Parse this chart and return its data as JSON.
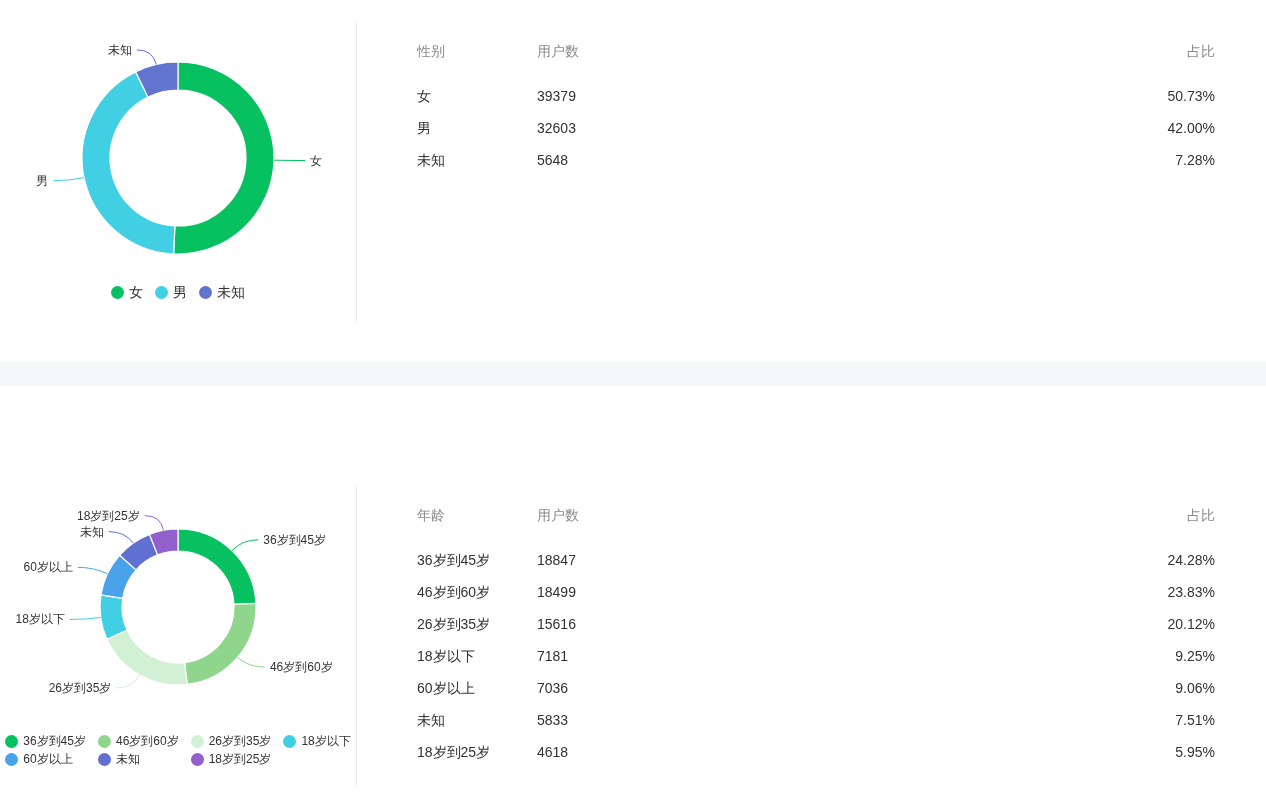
{
  "chart_data": [
    {
      "type": "donut",
      "categories": [
        "女",
        "男",
        "未知"
      ],
      "values": [
        50.73,
        42.0,
        7.28
      ],
      "colors": [
        "#07c160",
        "#40cfe3",
        "#6074d0"
      ],
      "legend": "bottom"
    },
    {
      "type": "other",
      "xlabel": "性别",
      "categories": [
        "女",
        "男",
        "未知"
      ],
      "data_labels": true,
      "series": [
        {
          "name": "用户数",
          "values": [
            39379,
            32603,
            5648
          ]
        },
        {
          "name": "占比",
          "values": [
            50.73,
            42.0,
            7.28
          ],
          "value_labels": [
            "50.73%",
            "42.00%",
            "7.28%"
          ]
        }
      ]
    },
    {
      "type": "donut",
      "categories": [
        "36岁到45岁",
        "46岁到60岁",
        "26岁到35岁",
        "18岁以下",
        "60岁以上",
        "未知",
        "18岁到25岁"
      ],
      "values": [
        24.28,
        23.83,
        20.12,
        9.25,
        9.06,
        7.51,
        5.95
      ],
      "colors": [
        "#07c160",
        "#8fd68c",
        "#d2f0d4",
        "#40cfe3",
        "#4aa3ea",
        "#5f70d0",
        "#9160cc"
      ],
      "legend": "bottom"
    },
    {
      "type": "other",
      "xlabel": "年龄",
      "categories": [
        "36岁到45岁",
        "46岁到60岁",
        "26岁到35岁",
        "18岁以下",
        "60岁以上",
        "未知",
        "18岁到25岁"
      ],
      "data_labels": true,
      "series": [
        {
          "name": "用户数",
          "values": [
            18847,
            18499,
            15616,
            7181,
            7036,
            5833,
            4618
          ]
        },
        {
          "name": "占比",
          "values": [
            24.28,
            23.83,
            20.12,
            9.25,
            9.06,
            7.51,
            5.95
          ],
          "value_labels": [
            "24.28%",
            "23.83%",
            "20.12%",
            "9.25%",
            "9.06%",
            "7.51%",
            "5.95%"
          ]
        }
      ]
    }
  ]
}
